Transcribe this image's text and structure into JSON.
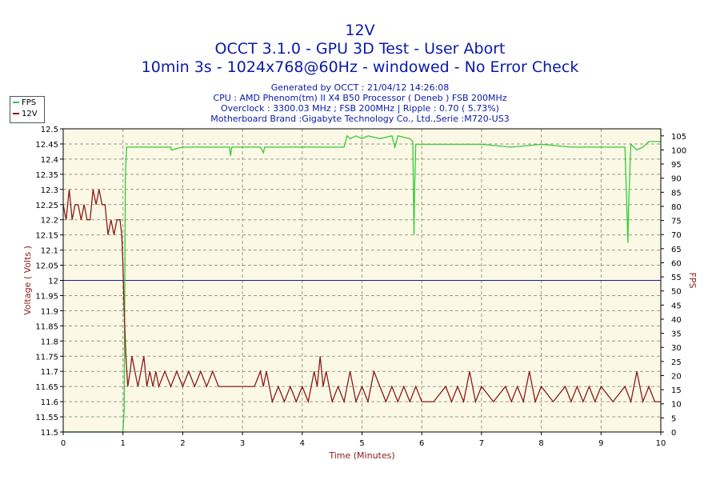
{
  "chart_data": {
    "type": "line",
    "title": "12V",
    "subtitle": "OCCT 3.1.0 - GPU 3D Test - User Abort",
    "info": "10min 3s - 1024x768@60Hz - windowed - No Error Check",
    "meta": [
      "Generated by OCCT : 21/04/12 14:26:08",
      "CPU : AMD Phenom(tm) II X4 B50 Processor ( Deneb ) FSB 200MHz",
      "Overclock : 3300.03 MHz ; FSB 200MHz | Ripple : 0.70 ( 5.73%)",
      "Motherboard Brand :Gigabyte Technology Co., Ltd.,Serie :M720-US3"
    ],
    "xlabel": "Time (Minutes)",
    "ylabel_left": "Voltage ( Volts )",
    "ylabel_right": "FPS",
    "xlim": [
      0,
      10
    ],
    "ylim_left": [
      11.5,
      12.5
    ],
    "ylim_right": [
      0,
      107.5
    ],
    "x_ticks": [
      "0",
      "1",
      "2",
      "3",
      "4",
      "5",
      "6",
      "7",
      "8",
      "9",
      "10"
    ],
    "y_left_ticks": [
      "11.5",
      "11.55",
      "11.6",
      "11.65",
      "11.7",
      "11.75",
      "11.8",
      "11.85",
      "11.9",
      "11.95",
      "12",
      "12.05",
      "12.1",
      "12.15",
      "12.2",
      "12.25",
      "12.3",
      "12.35",
      "12.4",
      "12.45",
      "12.5"
    ],
    "y_right_ticks": [
      "0",
      "5",
      "10",
      "15",
      "20",
      "25",
      "30",
      "35",
      "40",
      "45",
      "50",
      "55",
      "60",
      "65",
      "70",
      "75",
      "80",
      "85",
      "90",
      "95",
      "100",
      "105"
    ],
    "reference_line": {
      "value": 12,
      "axis": "left",
      "color": "#1a1aa0"
    },
    "grid": true,
    "legend_position": "top-left",
    "series": [
      {
        "name": "FPS",
        "axis": "right",
        "color": "#33cc33",
        "points": [
          [
            0,
            0
          ],
          [
            1,
            0
          ],
          [
            1.02,
            8
          ],
          [
            1.04,
            90
          ],
          [
            1.06,
            101
          ],
          [
            1.1,
            101
          ],
          [
            1.5,
            101
          ],
          [
            1.6,
            101
          ],
          [
            1.8,
            101
          ],
          [
            1.81,
            100
          ],
          [
            2.0,
            101
          ],
          [
            2.5,
            101
          ],
          [
            2.78,
            101
          ],
          [
            2.8,
            98
          ],
          [
            2.82,
            101
          ],
          [
            3.3,
            101
          ],
          [
            3.35,
            99
          ],
          [
            3.37,
            101
          ],
          [
            4.0,
            101
          ],
          [
            4.5,
            101
          ],
          [
            4.7,
            101
          ],
          [
            4.75,
            105
          ],
          [
            4.8,
            104
          ],
          [
            4.9,
            105
          ],
          [
            5.0,
            104
          ],
          [
            5.1,
            105
          ],
          [
            5.3,
            104
          ],
          [
            5.5,
            105
          ],
          [
            5.55,
            101
          ],
          [
            5.6,
            105
          ],
          [
            5.8,
            104
          ],
          [
            5.85,
            103
          ],
          [
            5.87,
            70
          ],
          [
            5.88,
            85
          ],
          [
            5.9,
            102
          ],
          [
            6.0,
            102
          ],
          [
            6.5,
            102
          ],
          [
            7.0,
            102
          ],
          [
            7.5,
            101
          ],
          [
            8.0,
            102
          ],
          [
            8.5,
            101
          ],
          [
            9.0,
            101
          ],
          [
            9.3,
            101
          ],
          [
            9.4,
            101
          ],
          [
            9.45,
            67
          ],
          [
            9.46,
            80
          ],
          [
            9.5,
            102
          ],
          [
            9.6,
            100
          ],
          [
            9.7,
            101
          ],
          [
            9.8,
            103
          ],
          [
            10.0,
            103
          ]
        ]
      },
      {
        "name": "12V",
        "axis": "left",
        "color": "#8b1a1a",
        "points": [
          [
            0,
            12.25
          ],
          [
            0.05,
            12.2
          ],
          [
            0.1,
            12.3
          ],
          [
            0.15,
            12.2
          ],
          [
            0.2,
            12.25
          ],
          [
            0.25,
            12.25
          ],
          [
            0.3,
            12.2
          ],
          [
            0.35,
            12.25
          ],
          [
            0.4,
            12.2
          ],
          [
            0.45,
            12.2
          ],
          [
            0.5,
            12.3
          ],
          [
            0.55,
            12.25
          ],
          [
            0.6,
            12.3
          ],
          [
            0.65,
            12.25
          ],
          [
            0.7,
            12.25
          ],
          [
            0.75,
            12.15
          ],
          [
            0.8,
            12.2
          ],
          [
            0.85,
            12.15
          ],
          [
            0.9,
            12.2
          ],
          [
            0.95,
            12.2
          ],
          [
            0.98,
            12.15
          ],
          [
            1.0,
            12.05
          ],
          [
            1.02,
            11.9
          ],
          [
            1.05,
            11.75
          ],
          [
            1.08,
            11.65
          ],
          [
            1.12,
            11.7
          ],
          [
            1.15,
            11.75
          ],
          [
            1.2,
            11.7
          ],
          [
            1.25,
            11.65
          ],
          [
            1.3,
            11.7
          ],
          [
            1.35,
            11.75
          ],
          [
            1.4,
            11.65
          ],
          [
            1.45,
            11.7
          ],
          [
            1.5,
            11.65
          ],
          [
            1.55,
            11.7
          ],
          [
            1.6,
            11.65
          ],
          [
            1.7,
            11.7
          ],
          [
            1.8,
            11.65
          ],
          [
            1.9,
            11.7
          ],
          [
            2.0,
            11.65
          ],
          [
            2.1,
            11.7
          ],
          [
            2.2,
            11.65
          ],
          [
            2.3,
            11.7
          ],
          [
            2.4,
            11.65
          ],
          [
            2.5,
            11.7
          ],
          [
            2.6,
            11.65
          ],
          [
            2.8,
            11.65
          ],
          [
            3.0,
            11.65
          ],
          [
            3.2,
            11.65
          ],
          [
            3.3,
            11.7
          ],
          [
            3.35,
            11.65
          ],
          [
            3.4,
            11.7
          ],
          [
            3.45,
            11.65
          ],
          [
            3.5,
            11.6
          ],
          [
            3.6,
            11.65
          ],
          [
            3.7,
            11.6
          ],
          [
            3.8,
            11.65
          ],
          [
            3.9,
            11.6
          ],
          [
            4.0,
            11.65
          ],
          [
            4.1,
            11.6
          ],
          [
            4.2,
            11.7
          ],
          [
            4.25,
            11.65
          ],
          [
            4.3,
            11.75
          ],
          [
            4.35,
            11.65
          ],
          [
            4.4,
            11.7
          ],
          [
            4.5,
            11.6
          ],
          [
            4.6,
            11.65
          ],
          [
            4.7,
            11.6
          ],
          [
            4.8,
            11.7
          ],
          [
            4.9,
            11.6
          ],
          [
            5.0,
            11.65
          ],
          [
            5.1,
            11.6
          ],
          [
            5.2,
            11.7
          ],
          [
            5.3,
            11.65
          ],
          [
            5.4,
            11.6
          ],
          [
            5.5,
            11.65
          ],
          [
            5.6,
            11.6
          ],
          [
            5.7,
            11.65
          ],
          [
            5.8,
            11.6
          ],
          [
            5.9,
            11.65
          ],
          [
            6.0,
            11.6
          ],
          [
            6.2,
            11.6
          ],
          [
            6.4,
            11.65
          ],
          [
            6.5,
            11.6
          ],
          [
            6.6,
            11.65
          ],
          [
            6.7,
            11.6
          ],
          [
            6.8,
            11.7
          ],
          [
            6.9,
            11.6
          ],
          [
            7.0,
            11.65
          ],
          [
            7.2,
            11.6
          ],
          [
            7.4,
            11.65
          ],
          [
            7.5,
            11.6
          ],
          [
            7.6,
            11.65
          ],
          [
            7.7,
            11.6
          ],
          [
            7.8,
            11.7
          ],
          [
            7.9,
            11.6
          ],
          [
            8.0,
            11.65
          ],
          [
            8.2,
            11.6
          ],
          [
            8.4,
            11.65
          ],
          [
            8.5,
            11.6
          ],
          [
            8.6,
            11.65
          ],
          [
            8.7,
            11.6
          ],
          [
            8.8,
            11.65
          ],
          [
            8.9,
            11.6
          ],
          [
            9.0,
            11.65
          ],
          [
            9.2,
            11.6
          ],
          [
            9.4,
            11.65
          ],
          [
            9.5,
            11.6
          ],
          [
            9.6,
            11.7
          ],
          [
            9.7,
            11.6
          ],
          [
            9.8,
            11.65
          ],
          [
            9.9,
            11.6
          ],
          [
            10.0,
            11.6
          ]
        ]
      }
    ]
  }
}
